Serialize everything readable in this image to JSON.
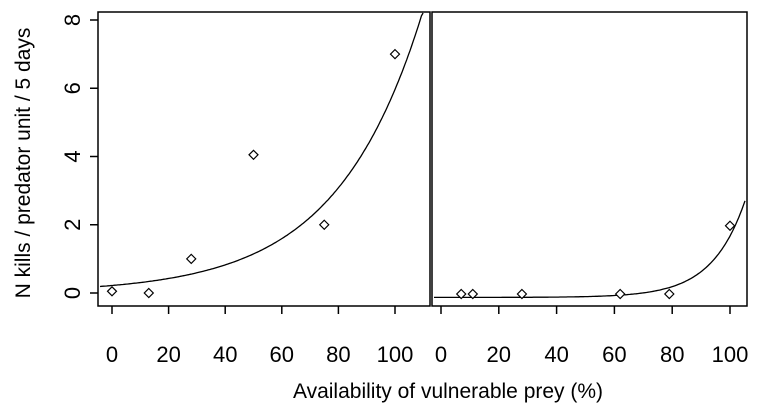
{
  "chart_data": [
    {
      "type": "scatter",
      "panel": "left",
      "xlabel": "Availability of vulnerable prey (%)",
      "ylabel": "N kills / predator unit / 5 days",
      "xlim": [
        0,
        100
      ],
      "ylim": [
        0,
        8
      ],
      "x_ticks": [
        "0",
        "20",
        "40",
        "60",
        "80",
        "100"
      ],
      "y_ticks": [
        "0",
        "2",
        "4",
        "6",
        "8"
      ],
      "points": [
        {
          "x": 0,
          "y": 0.05
        },
        {
          "x": 13,
          "y": 0.0
        },
        {
          "x": 28,
          "y": 1.0
        },
        {
          "x": 50,
          "y": 4.05
        },
        {
          "x": 75,
          "y": 2.0
        },
        {
          "x": 100,
          "y": 7.0
        }
      ],
      "fit": {
        "form": "exponential",
        "a": 0.22,
        "b": 0.033
      }
    },
    {
      "type": "scatter",
      "panel": "right",
      "xlabel": "Availability of vulnerable prey (%)",
      "xlim": [
        0,
        100
      ],
      "ylim": [
        0,
        8
      ],
      "x_ticks": [
        "0",
        "20",
        "40",
        "60",
        "80",
        "100"
      ],
      "points": [
        {
          "x": 7,
          "y": 0.0
        },
        {
          "x": 11,
          "y": 0.0
        },
        {
          "x": 28,
          "y": 0.0
        },
        {
          "x": 62,
          "y": 0.0
        },
        {
          "x": 79,
          "y": 0.0
        },
        {
          "x": 100,
          "y": 2.0
        }
      ],
      "fit": {
        "form": "exponential",
        "a": 0.0003,
        "b": 0.087
      }
    }
  ]
}
